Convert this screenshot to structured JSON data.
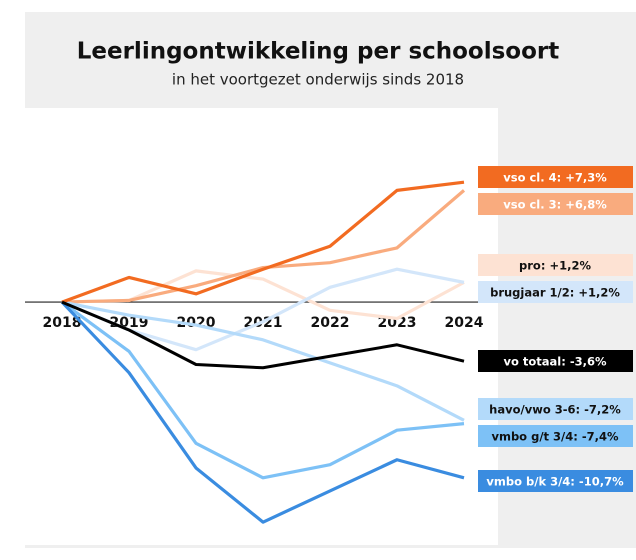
{
  "chart_data": {
    "type": "line",
    "title": "Leerlingontwikkeling per schoolsoort",
    "subtitle": "in het voortgezet onderwijs sinds 2018",
    "x": [
      "2018",
      "2019",
      "2020",
      "2021",
      "2022",
      "2023",
      "2024"
    ],
    "ylim": [
      -14,
      12
    ],
    "series": [
      {
        "name": "vso cl. 4:",
        "color": "#f26b21",
        "values": [
          0,
          1.5,
          0.5,
          2.0,
          3.4,
          6.8,
          7.3
        ],
        "value_labels": [
          null,
          null,
          null,
          null,
          null,
          null,
          "+7,3%"
        ]
      },
      {
        "name": "vso cl. 3:",
        "color": "#f9ab7e",
        "values": [
          0,
          0.1,
          1.0,
          2.1,
          2.4,
          3.3,
          6.8
        ],
        "value_labels": [
          null,
          null,
          null,
          null,
          null,
          null,
          "+6,8%"
        ]
      },
      {
        "name": "pro:",
        "color": "#fde2d3",
        "values": [
          0,
          0.1,
          1.9,
          1.4,
          -0.5,
          -1.0,
          1.2
        ],
        "value_labels": [
          null,
          null,
          null,
          null,
          null,
          null,
          "+1,2%"
        ]
      },
      {
        "name": "brugjaar 1/2:",
        "color": "#d3e6fa",
        "values": [
          0,
          -1.7,
          -2.9,
          -1.2,
          0.9,
          2.0,
          1.2
        ],
        "value_labels": [
          null,
          null,
          null,
          null,
          null,
          null,
          "+1,2%"
        ]
      },
      {
        "name": "vo totaal:",
        "color": "#000000",
        "values": [
          0,
          -1.7,
          -3.8,
          -4.0,
          -3.3,
          -2.6,
          -3.6
        ],
        "value_labels": [
          null,
          null,
          null,
          null,
          null,
          null,
          "-3,6%"
        ]
      },
      {
        "name": "havo/vwo 3-6:",
        "color": "#b3dafa",
        "values": [
          0,
          -0.8,
          -1.4,
          -2.3,
          -3.7,
          -5.1,
          -7.2
        ],
        "value_labels": [
          null,
          null,
          null,
          null,
          null,
          null,
          "-7,2%"
        ]
      },
      {
        "name": "vmbo g/t 3/4:",
        "color": "#7dc1f6",
        "values": [
          0,
          -3.0,
          -8.6,
          -10.7,
          -9.9,
          -7.8,
          -7.4
        ],
        "value_labels": [
          null,
          null,
          null,
          null,
          null,
          null,
          "-7,4%"
        ]
      },
      {
        "name": "vmbo b/k 3/4:",
        "color": "#3a8ce0",
        "values": [
          0,
          -4.3,
          -10.1,
          -13.4,
          -11.5,
          -9.6,
          -10.7
        ],
        "value_labels": [
          null,
          null,
          null,
          null,
          null,
          null,
          "-10,7%"
        ]
      }
    ]
  }
}
